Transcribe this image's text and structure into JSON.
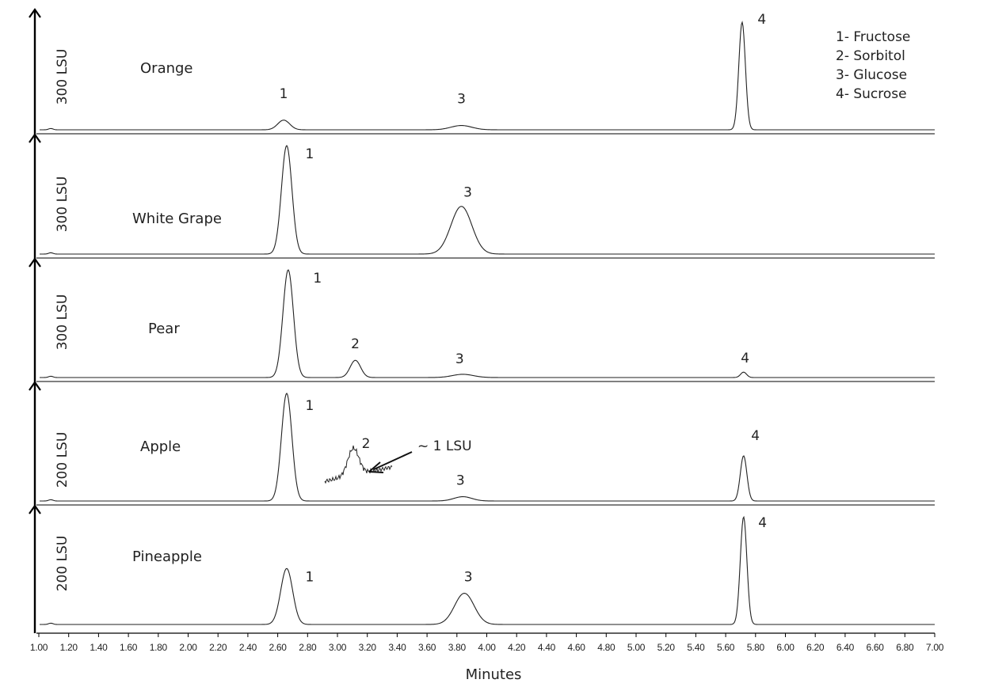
{
  "chart_data": {
    "type": "line",
    "title": "",
    "xlabel": "Minutes",
    "xlim": [
      1.0,
      7.0
    ],
    "x_ticks": [
      "1.00",
      "1.20",
      "1.40",
      "1.60",
      "1.80",
      "2.00",
      "2.20",
      "2.40",
      "2.60",
      "2.80",
      "3.00",
      "3.20",
      "3.40",
      "3.60",
      "3.80",
      "4.00",
      "4.20",
      "4.40",
      "4.60",
      "4.80",
      "5.00",
      "5.20",
      "5.40",
      "5.60",
      "5.80",
      "6.00",
      "6.20",
      "6.40",
      "6.60",
      "6.80",
      "7.00"
    ],
    "legend": [
      "1- Fructose",
      "2- Sorbitol",
      "3- Glucose",
      "4- Sucrose"
    ],
    "legend_position": "top-right",
    "grid": false,
    "panels": [
      {
        "name": "Orange",
        "ylabel": "300 LSU",
        "peaks": [
          {
            "label": "1",
            "x": 2.64,
            "height": 0.09,
            "width": 0.04
          },
          {
            "label": "3",
            "x": 3.83,
            "height": 0.04,
            "width": 0.07
          },
          {
            "label": "4",
            "x": 5.71,
            "height": 1.0,
            "width": 0.022
          }
        ]
      },
      {
        "name": "White Grape",
        "ylabel": "300 LSU",
        "peaks": [
          {
            "label": "1",
            "x": 2.66,
            "height": 1.0,
            "width": 0.035
          },
          {
            "label": "3",
            "x": 3.83,
            "height": 0.44,
            "width": 0.07
          }
        ]
      },
      {
        "name": "Pear",
        "ylabel": "300 LSU",
        "peaks": [
          {
            "label": "1",
            "x": 2.67,
            "height": 1.0,
            "width": 0.035
          },
          {
            "label": "2",
            "x": 3.12,
            "height": 0.16,
            "width": 0.035
          },
          {
            "label": "3",
            "x": 3.84,
            "height": 0.03,
            "width": 0.07
          },
          {
            "label": "4",
            "x": 5.72,
            "height": 0.05,
            "width": 0.02
          }
        ]
      },
      {
        "name": "Apple",
        "ylabel": "200 LSU",
        "peaks": [
          {
            "label": "1",
            "x": 2.66,
            "height": 1.0,
            "width": 0.035
          },
          {
            "label": "2",
            "x": 3.1,
            "height": 0.0,
            "width": 0.035
          },
          {
            "label": "3",
            "x": 3.84,
            "height": 0.04,
            "width": 0.06
          },
          {
            "label": "4",
            "x": 5.72,
            "height": 0.42,
            "width": 0.022
          }
        ],
        "annotation": "~ 1 LSU"
      },
      {
        "name": "Pineapple",
        "ylabel": "200 LSU",
        "peaks": [
          {
            "label": "1",
            "x": 2.66,
            "height": 0.52,
            "width": 0.04
          },
          {
            "label": "3",
            "x": 3.85,
            "height": 0.29,
            "width": 0.065
          },
          {
            "label": "4",
            "x": 5.72,
            "height": 1.0,
            "width": 0.022
          }
        ]
      }
    ]
  }
}
